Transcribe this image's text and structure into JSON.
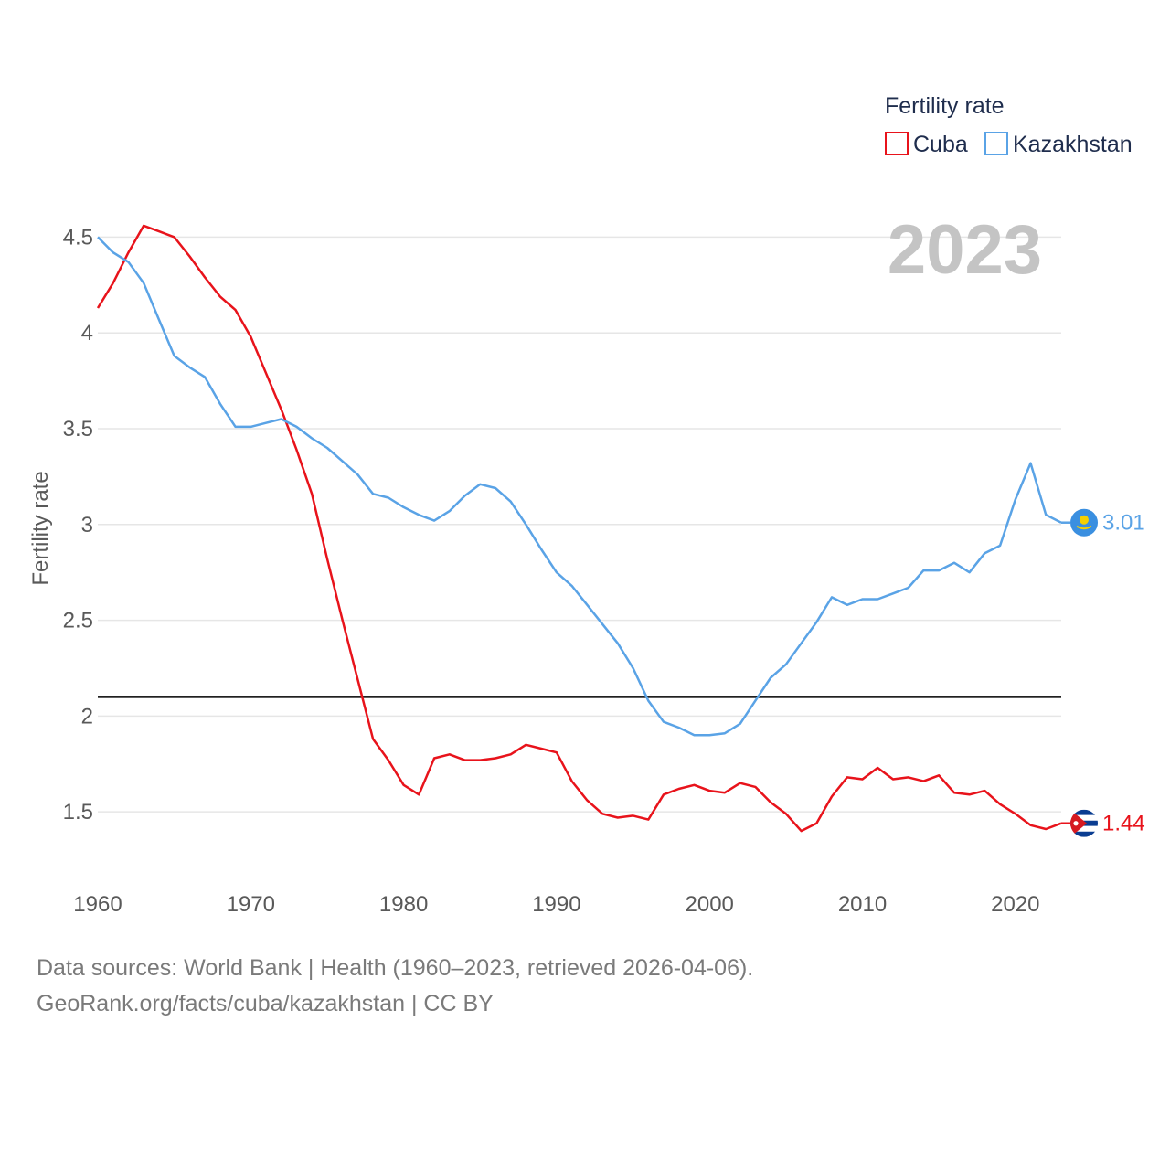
{
  "chart_data": {
    "type": "line",
    "title": "Fertility rate",
    "ylabel": "Fertility rate",
    "xlabel": "",
    "year_label": "2023",
    "xlim": [
      1960,
      2023
    ],
    "ylim": [
      1.1,
      4.65
    ],
    "x_ticks": [
      1960,
      1970,
      1980,
      1990,
      2000,
      2010,
      2020
    ],
    "y_ticks": [
      1.5,
      2,
      2.5,
      3,
      3.5,
      4,
      4.5
    ],
    "y_tick_labels": [
      "1.5",
      "2",
      "2.5",
      "3",
      "3.5",
      "4",
      "4.5"
    ],
    "x_tick_labels": [
      "1960",
      "1970",
      "1980",
      "1990",
      "2000",
      "2010",
      "2020"
    ],
    "reference_line": {
      "y": 2.1,
      "color": "#000000"
    },
    "legend": {
      "title": "Fertility rate",
      "position": "top-right"
    },
    "x": [
      1960,
      1961,
      1962,
      1963,
      1964,
      1965,
      1966,
      1967,
      1968,
      1969,
      1970,
      1971,
      1972,
      1973,
      1974,
      1975,
      1976,
      1977,
      1978,
      1979,
      1980,
      1981,
      1982,
      1983,
      1984,
      1985,
      1986,
      1987,
      1988,
      1989,
      1990,
      1991,
      1992,
      1993,
      1994,
      1995,
      1996,
      1997,
      1998,
      1999,
      2000,
      2001,
      2002,
      2003,
      2004,
      2005,
      2006,
      2007,
      2008,
      2009,
      2010,
      2011,
      2012,
      2013,
      2014,
      2015,
      2016,
      2017,
      2018,
      2019,
      2020,
      2021,
      2022,
      2023
    ],
    "series": [
      {
        "name": "Cuba",
        "color": "#e8131b",
        "end_label": "1.44",
        "flag": "cuba-flag-icon",
        "values": [
          4.13,
          4.26,
          4.42,
          4.56,
          4.53,
          4.5,
          4.4,
          4.29,
          4.19,
          4.12,
          3.98,
          3.79,
          3.6,
          3.39,
          3.16,
          2.82,
          2.5,
          2.19,
          1.88,
          1.77,
          1.64,
          1.59,
          1.78,
          1.8,
          1.77,
          1.77,
          1.78,
          1.8,
          1.85,
          1.83,
          1.81,
          1.66,
          1.56,
          1.49,
          1.47,
          1.48,
          1.46,
          1.59,
          1.62,
          1.64,
          1.61,
          1.6,
          1.65,
          1.63,
          1.55,
          1.49,
          1.4,
          1.44,
          1.58,
          1.68,
          1.67,
          1.73,
          1.67,
          1.68,
          1.66,
          1.69,
          1.6,
          1.59,
          1.61,
          1.54,
          1.49,
          1.43,
          1.41,
          1.44
        ]
      },
      {
        "name": "Kazakhstan",
        "color": "#5aa3e6",
        "end_label": "3.01",
        "flag": "kazakhstan-flag-icon",
        "values": [
          4.5,
          4.42,
          4.37,
          4.26,
          4.07,
          3.88,
          3.82,
          3.77,
          3.63,
          3.51,
          3.51,
          3.53,
          3.55,
          3.51,
          3.45,
          3.4,
          3.33,
          3.26,
          3.16,
          3.14,
          3.09,
          3.05,
          3.02,
          3.07,
          3.15,
          3.21,
          3.19,
          3.12,
          3.0,
          2.87,
          2.75,
          2.68,
          2.58,
          2.48,
          2.38,
          2.25,
          2.08,
          1.97,
          1.94,
          1.9,
          1.9,
          1.91,
          1.96,
          2.08,
          2.2,
          2.27,
          2.38,
          2.49,
          2.62,
          2.58,
          2.61,
          2.61,
          2.64,
          2.67,
          2.76,
          2.76,
          2.8,
          2.75,
          2.85,
          2.89,
          3.13,
          3.32,
          3.05,
          3.01
        ]
      }
    ]
  },
  "footer": {
    "line1": "Data sources: World Bank | Health (1960–2023, retrieved 2026-04-06).",
    "line2": "GeoRank.org/facts/cuba/kazakhstan | CC BY"
  }
}
